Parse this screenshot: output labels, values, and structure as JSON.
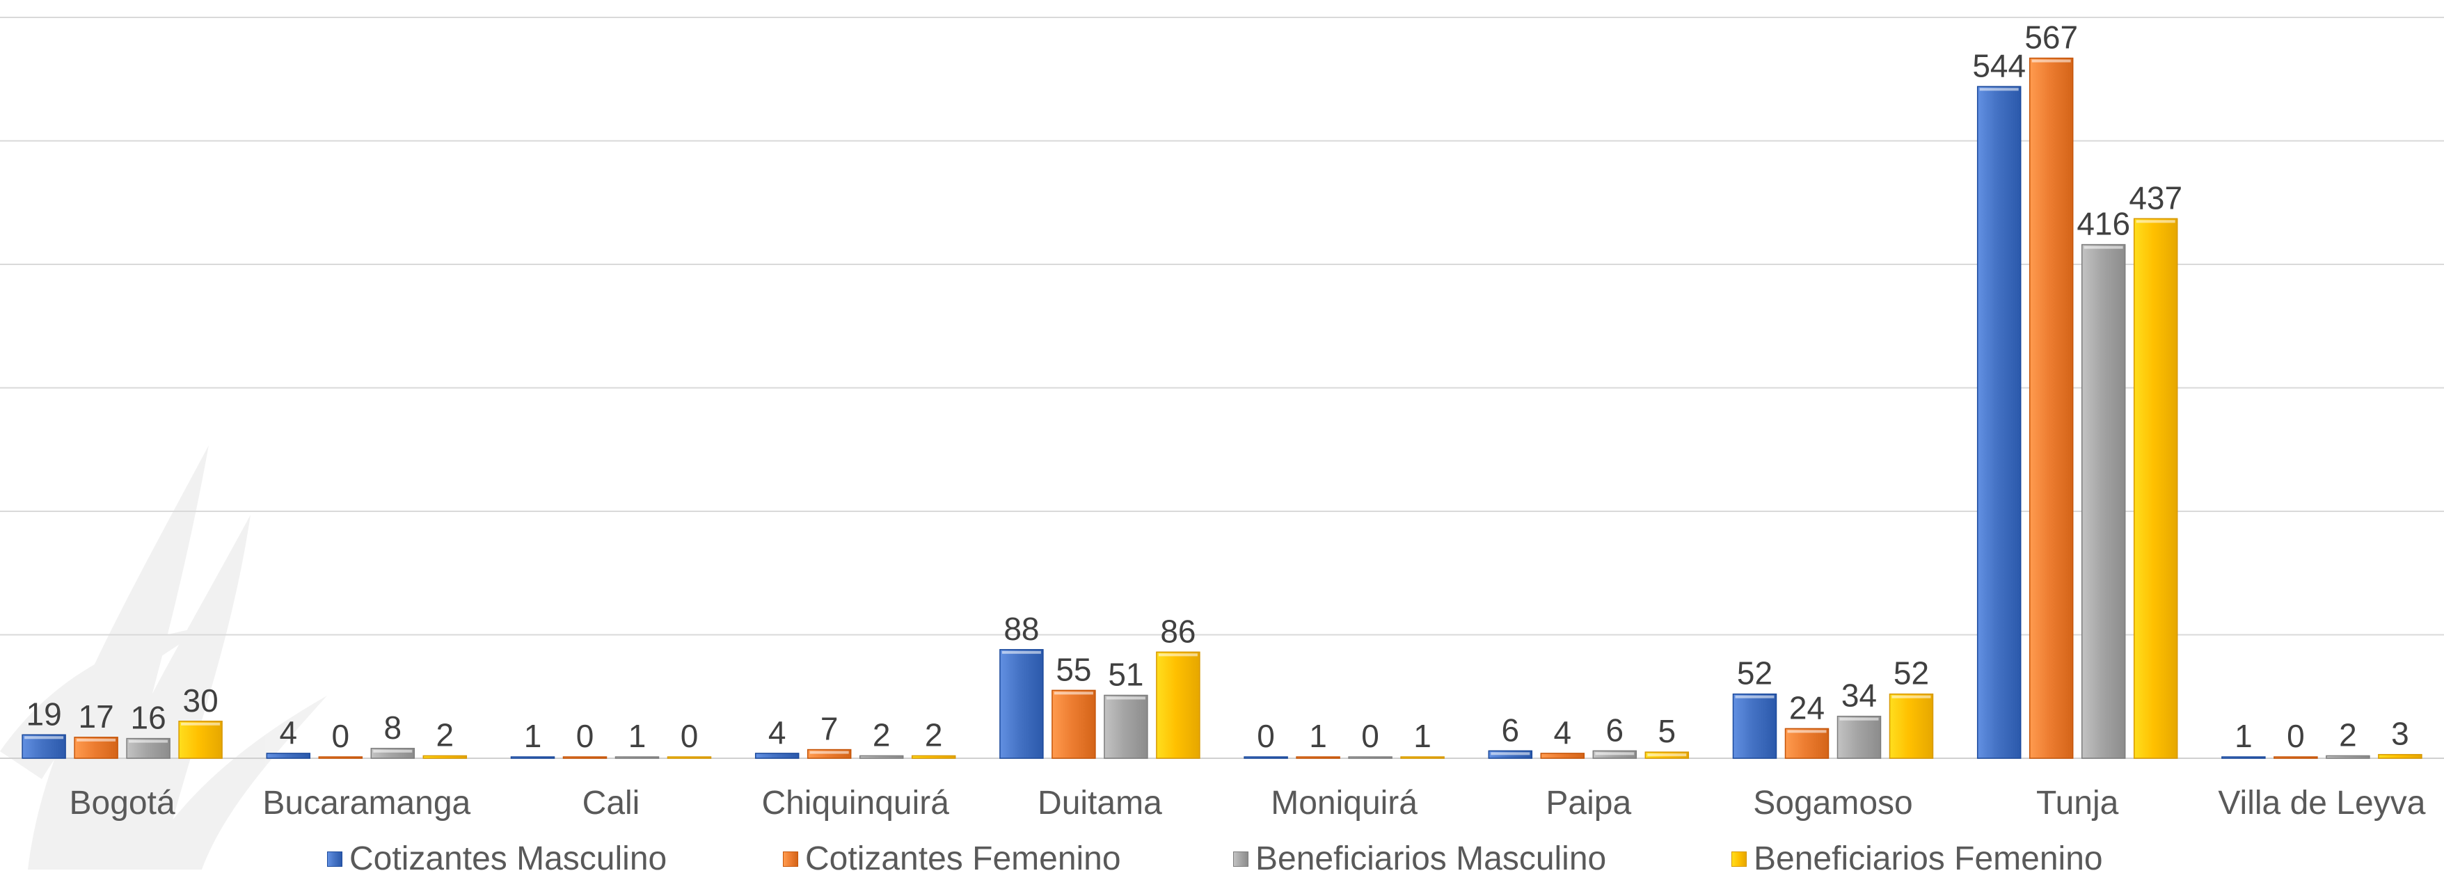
{
  "chart_data": {
    "type": "bar",
    "title": "",
    "xlabel": "",
    "ylabel": "",
    "ylim": [
      0,
      600
    ],
    "grid": true,
    "legend_position": "bottom",
    "categories": [
      "Bogotá",
      "Bucaramanga",
      "Cali",
      "Chiquinquirá",
      "Duitama",
      "Moniquirá",
      "Paipa",
      "Sogamoso",
      "Tunja",
      "Villa de Leyva"
    ],
    "series": [
      {
        "name": "Cotizantes Masculino",
        "color": "#4472C4",
        "values": [
          19,
          4,
          1,
          4,
          88,
          0,
          6,
          52,
          544,
          1
        ]
      },
      {
        "name": "Cotizantes Femenino",
        "color": "#ED7D31",
        "values": [
          17,
          0,
          0,
          7,
          55,
          1,
          4,
          24,
          567,
          0
        ]
      },
      {
        "name": "Beneficiarios Masculino",
        "color": "#A5A5A5",
        "values": [
          16,
          8,
          1,
          2,
          51,
          0,
          6,
          34,
          416,
          2
        ]
      },
      {
        "name": "Beneficiarios Femenino",
        "color": "#FFC000",
        "values": [
          30,
          2,
          0,
          2,
          86,
          1,
          5,
          52,
          437,
          3
        ]
      }
    ]
  }
}
